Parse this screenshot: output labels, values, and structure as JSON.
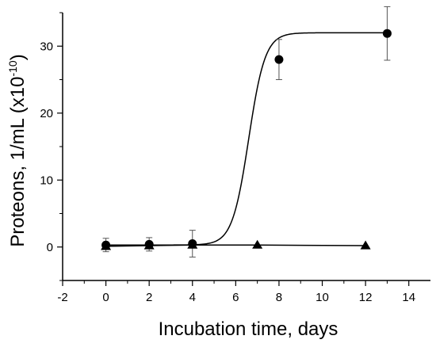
{
  "chart_data": {
    "type": "scatter",
    "title": "",
    "xlabel": "Incubation time, days",
    "ylabel": {
      "base": "Proteons, 1/mL (x10",
      "exponent": "-10",
      "close": ")"
    },
    "xlim": [
      -2,
      15
    ],
    "ylim": [
      -5,
      35
    ],
    "xticks": [
      -2,
      0,
      2,
      4,
      6,
      8,
      10,
      12,
      14
    ],
    "yticks": [
      0,
      10,
      20,
      30
    ],
    "grid": false,
    "legend": "none",
    "series": [
      {
        "marker": "circle",
        "line": "sigmoid fit",
        "x": [
          0,
          2,
          4,
          8,
          13
        ],
        "y": [
          0.3,
          0.4,
          0.5,
          28.0,
          31.9
        ],
        "yerr": [
          1.0,
          1.0,
          2.0,
          3.0,
          4.0
        ]
      },
      {
        "marker": "triangle",
        "line": "straight",
        "x": [
          0,
          2,
          4,
          7,
          12
        ],
        "y": [
          0.1,
          0.2,
          0.3,
          0.3,
          0.2
        ],
        "yerr": [
          0,
          0,
          0,
          0,
          0
        ]
      }
    ],
    "fit": {
      "base": 0.3,
      "top": 32.0,
      "midpoint": 6.6,
      "slope": 0.38
    },
    "colors": {
      "marks": "#000000",
      "axes": "#000000",
      "errorbars": "#555555"
    }
  }
}
